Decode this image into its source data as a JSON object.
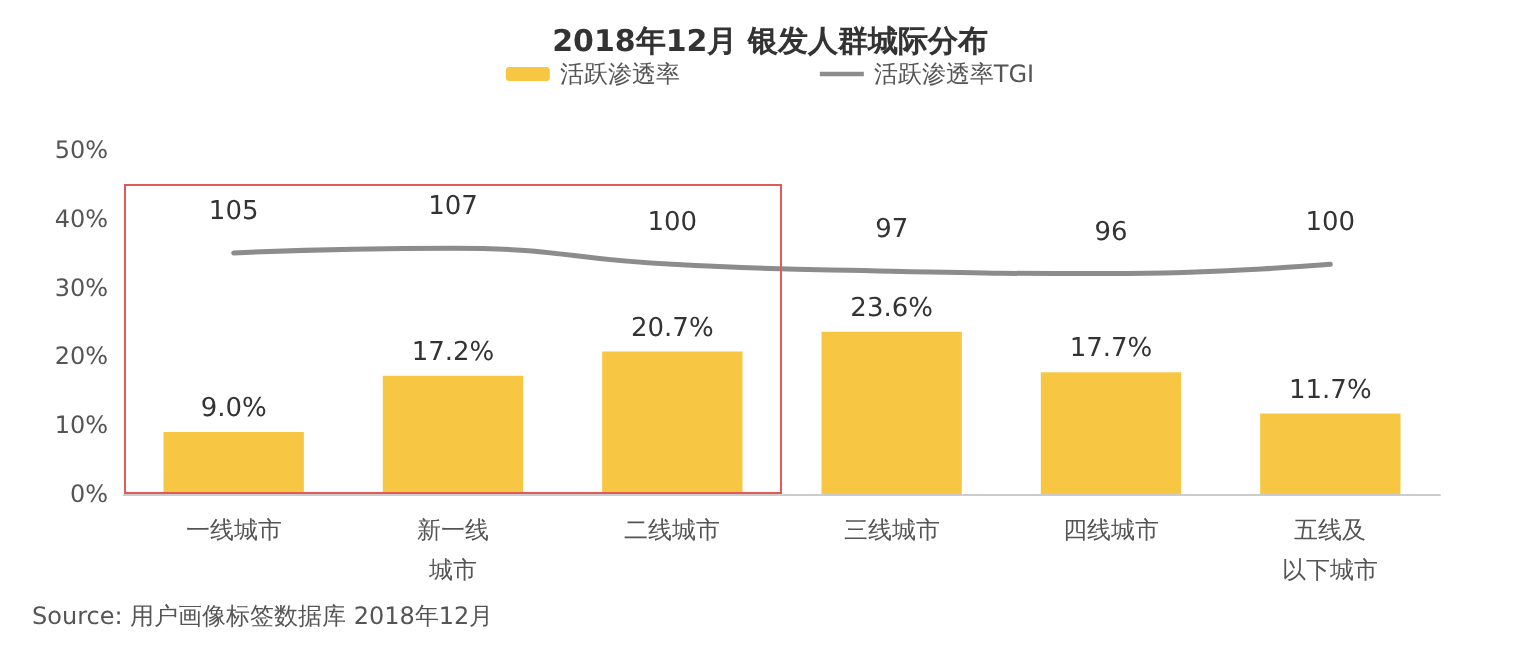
{
  "chart_data": {
    "type": "bar",
    "title": "2018年12月 银发人群城际分布",
    "categories": [
      "一线城市",
      "新一线城市",
      "二线城市",
      "三线城市",
      "四线城市",
      "五线及以下城市"
    ],
    "series": [
      {
        "name": "活跃渗透率",
        "color": "#f7c744",
        "values": [
          9.0,
          17.2,
          20.7,
          23.6,
          17.7,
          11.7
        ],
        "value_labels": [
          "9.0%",
          "17.2%",
          "20.7%",
          "23.6%",
          "17.7%",
          "11.7%"
        ]
      },
      {
        "name": "活跃渗透率TGI",
        "type": "line",
        "axis": "y2",
        "color": "#8c8c8c",
        "values": [
          105,
          107,
          100,
          97,
          96,
          100
        ],
        "value_labels": [
          "105",
          "107",
          "100",
          "97",
          "96",
          "100"
        ]
      }
    ],
    "ylim": [
      0,
      50
    ],
    "yticks": [
      {
        "value": 0,
        "label": "0%"
      },
      {
        "value": 10,
        "label": "10%"
      },
      {
        "value": 20,
        "label": "20%"
      },
      {
        "value": 30,
        "label": "30%"
      },
      {
        "value": 40,
        "label": "40%"
      },
      {
        "value": 50,
        "label": "50%"
      }
    ],
    "legend": "top",
    "grid": false,
    "marker": "none",
    "annotations": [
      "Source: 用户画像标签数据库 2018年12月"
    ]
  }
}
